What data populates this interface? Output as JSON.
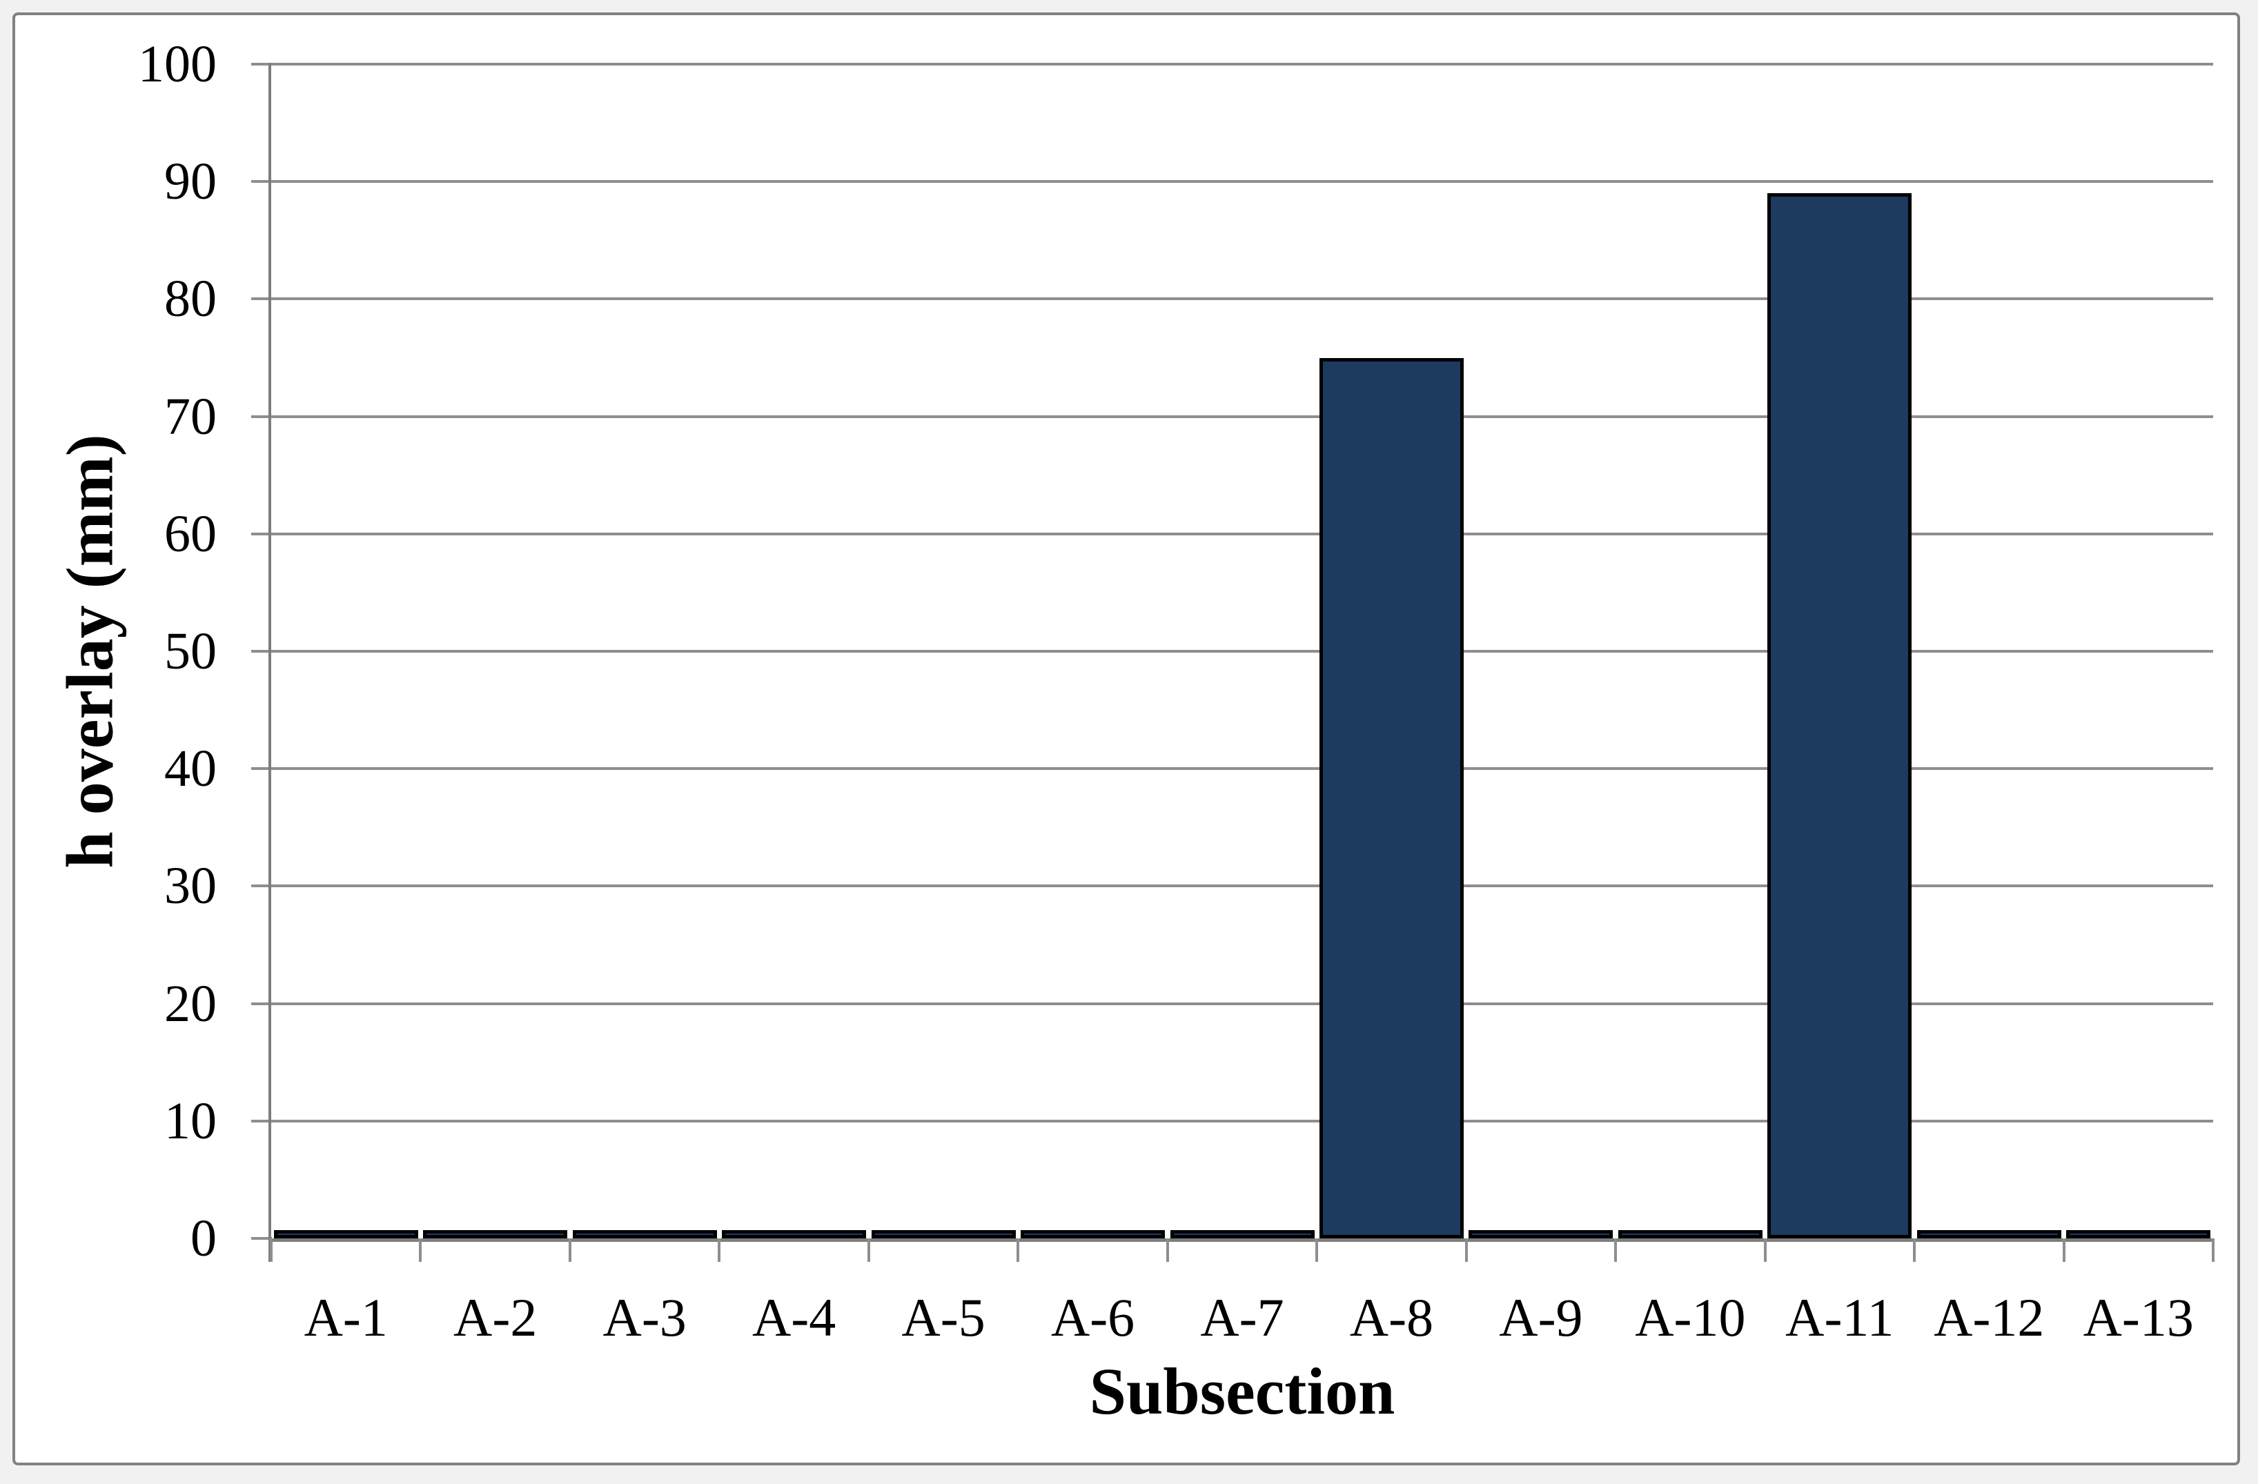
{
  "chart_data": {
    "type": "bar",
    "title": "",
    "xlabel": "Subsection",
    "ylabel": "h overlay (mm)",
    "categories": [
      "A-1",
      "A-2",
      "A-3",
      "A-4",
      "A-5",
      "A-6",
      "A-7",
      "A-8",
      "A-9",
      "A-10",
      "A-11",
      "A-12",
      "A-13"
    ],
    "values": [
      0.5,
      0.5,
      0.5,
      0.5,
      0.5,
      0.5,
      0.5,
      75,
      0.5,
      0.5,
      89,
      0.5,
      0.5
    ],
    "ylim": [
      0,
      100
    ],
    "ytick_step": 10,
    "ytick_labels": [
      "0",
      "10",
      "20",
      "30",
      "40",
      "50",
      "60",
      "70",
      "80",
      "90",
      "100"
    ],
    "grid": "horizontal-on",
    "legend": "none",
    "colors": {
      "bar_fill": "#1d3a5f",
      "bar_border": "#000000",
      "gridline": "#8e8e8e",
      "axis": "#7d7d7d",
      "frame_border": "#818181",
      "page_background": "#f1f1f1",
      "plot_background": "#ffffff",
      "text": "#000000"
    }
  }
}
